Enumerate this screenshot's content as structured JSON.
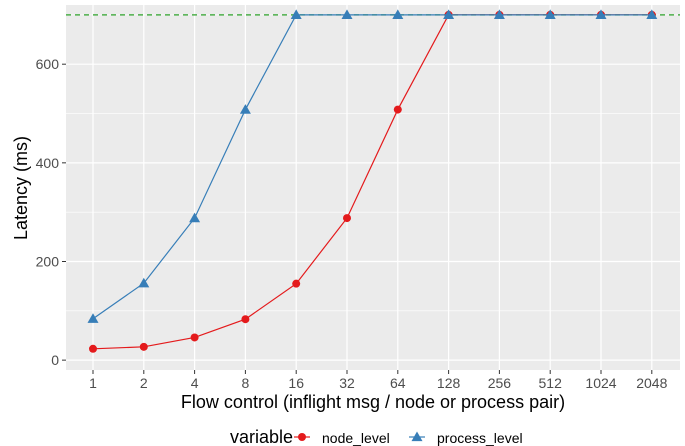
{
  "chart_data": {
    "type": "line",
    "title": "",
    "xlabel": "Flow control (inflight msg / node or process pair)",
    "ylabel": "Latency (ms)",
    "x_scale": "log2",
    "categories": [
      "1",
      "2",
      "4",
      "8",
      "16",
      "32",
      "64",
      "128",
      "256",
      "512",
      "1024",
      "2048"
    ],
    "ylim": [
      -20,
      720
    ],
    "y_ticks": [
      0,
      200,
      400,
      600
    ],
    "grid": true,
    "reference_line": {
      "y": 700,
      "color": "#4daf4a",
      "style": "dashed"
    },
    "legend": {
      "title": "variable",
      "position": "bottom"
    },
    "series": [
      {
        "name": "node_level",
        "color": "#e41a1c",
        "marker": "circle",
        "values": [
          23,
          27,
          46,
          83,
          155,
          288,
          508,
          700,
          700,
          700,
          700,
          700
        ]
      },
      {
        "name": "process_level",
        "color": "#377eb8",
        "marker": "triangle",
        "values": [
          84,
          156,
          288,
          508,
          700,
          700,
          700,
          700,
          700,
          700,
          700,
          700
        ]
      }
    ]
  }
}
